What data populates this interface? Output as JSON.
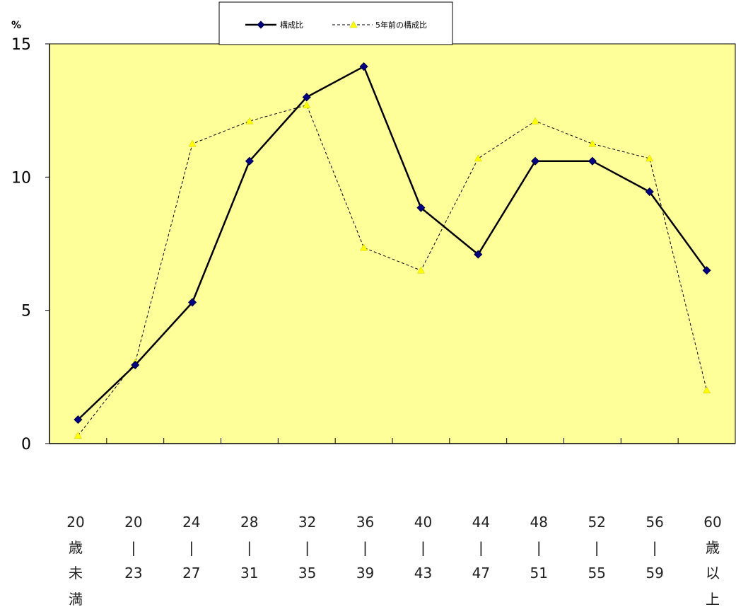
{
  "chart_data": {
    "type": "line",
    "title": "",
    "ylabel": "%",
    "xlabel": "",
    "ylim": [
      0,
      15
    ],
    "yticks": [
      "0",
      "5",
      "10",
      "15"
    ],
    "categories": [
      [
        "20",
        "歳",
        "未",
        "満"
      ],
      [
        "20",
        "|",
        "23"
      ],
      [
        "24",
        "|",
        "27"
      ],
      [
        "28",
        "|",
        "31"
      ],
      [
        "32",
        "|",
        "35"
      ],
      [
        "36",
        "|",
        "39"
      ],
      [
        "40",
        "|",
        "43"
      ],
      [
        "44",
        "|",
        "47"
      ],
      [
        "48",
        "|",
        "51"
      ],
      [
        "52",
        "|",
        "55"
      ],
      [
        "56",
        "|",
        "59"
      ],
      [
        "60",
        "歳",
        "以",
        "上"
      ]
    ],
    "series": [
      {
        "name": "構成比",
        "color": "#000080",
        "line_color": "#000000",
        "style": "solid",
        "marker": "diamond",
        "values": [
          0.9,
          2.95,
          5.3,
          10.6,
          13.0,
          14.15,
          8.85,
          7.1,
          10.6,
          10.6,
          9.45,
          6.5
        ]
      },
      {
        "name": "5年前の構成比",
        "color": "#ffff00",
        "line_color": "#000000",
        "style": "dashed",
        "marker": "triangle",
        "values": [
          0.3,
          3.05,
          11.25,
          12.1,
          12.7,
          7.35,
          6.5,
          10.7,
          12.1,
          11.25,
          10.7,
          2.0
        ]
      }
    ],
    "plot_background": "#ffff99",
    "grid": false,
    "legend_position": "top"
  }
}
